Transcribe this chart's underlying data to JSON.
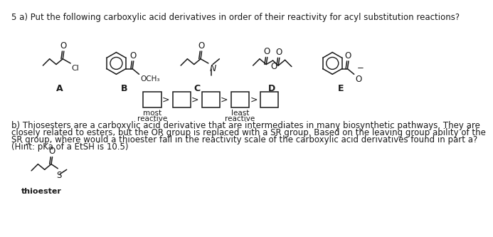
{
  "title": "5 a) Put the following carboxylic acid derivatives in order of their reactivity for acyl substitution reactions?",
  "question_b_line1": "b) Thiosesters are a carboxylic acid derivative that are intermediates in many biosynthetic pathways. They are",
  "question_b_line2": "closely related to esters, but the OR group is replaced with a SR group. Based on the leaving group ability of the",
  "question_b_line3": "SR group, where would a thioester fall in the reactivity scale of the carboxylic acid derivatives found in part a?",
  "question_b_line4": "(Hint: pKa of a EtSH is 10.5)",
  "labels": [
    "A",
    "B",
    "C",
    "D",
    "E"
  ],
  "most_reactive": "most",
  "most_reactive2": "reactive",
  "least_reactive": "least",
  "least_reactive2": "reactive",
  "thioester_label": "thioester",
  "bg_color": "#ffffff",
  "text_color": "#1a1a1a",
  "font_size_title": 8.5,
  "font_size_body": 8.5,
  "font_size_label": 9,
  "font_size_mol": 7.5
}
